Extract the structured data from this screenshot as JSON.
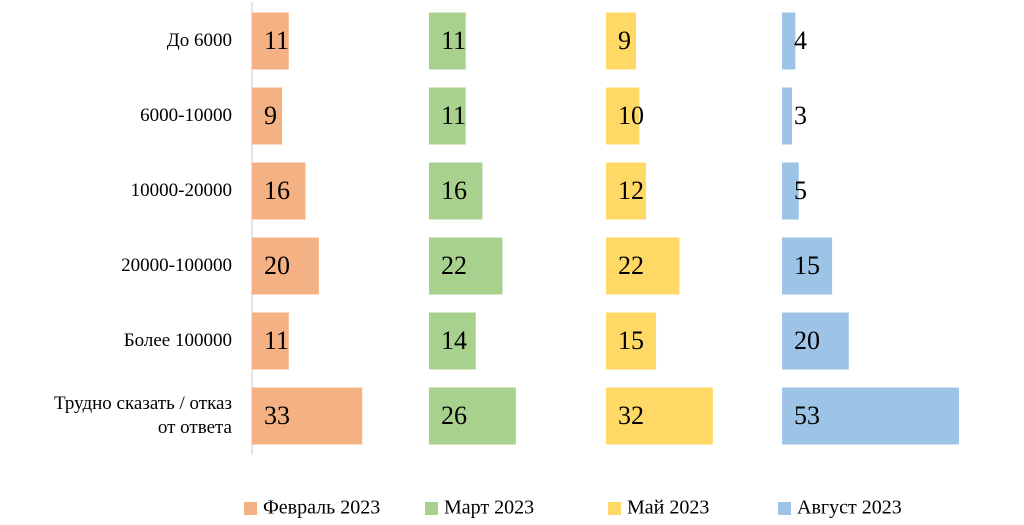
{
  "chart_data": {
    "type": "bar",
    "orientation": "horizontal",
    "categories": [
      "До 6000",
      "6000-10000",
      "10000-20000",
      "20000-100000",
      "Более 100000",
      "Трудно сказать / отказ от ответа"
    ],
    "series": [
      {
        "name": "Февраль 2023",
        "color": "#f4b183",
        "values": [
          11,
          9,
          16,
          20,
          11,
          33
        ]
      },
      {
        "name": "Март 2023",
        "color": "#a9d18e",
        "values": [
          11,
          11,
          16,
          22,
          14,
          26
        ]
      },
      {
        "name": "Май 2023",
        "color": "#ffd966",
        "values": [
          9,
          10,
          12,
          22,
          15,
          32
        ]
      },
      {
        "name": "Август 2023",
        "color": "#9dc3e6",
        "values": [
          4,
          3,
          5,
          15,
          20,
          53
        ]
      }
    ],
    "xlim": [
      0,
      53
    ],
    "legend": "bottom"
  }
}
